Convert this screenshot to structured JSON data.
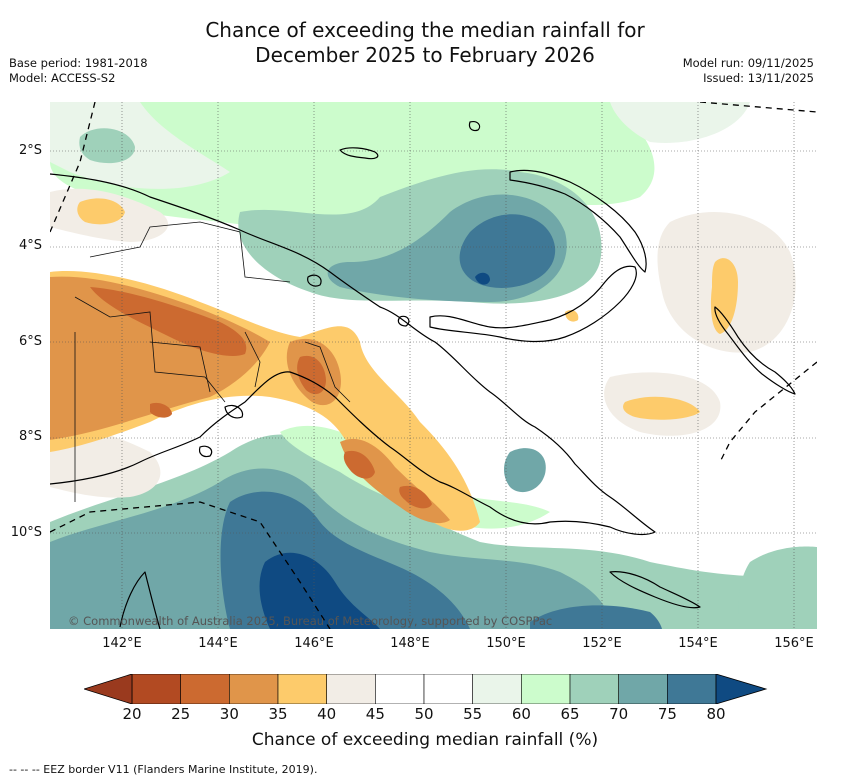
{
  "title_line1": "Chance of exceeding the median rainfall for",
  "title_line2": "December 2025 to February 2026",
  "base_period": "Base period: 1981-2018",
  "model": "Model: ACCESS-S2",
  "model_run": "Model run: 09/11/2025",
  "issued": "Issued: 13/11/2025",
  "credit": "© Commonwealth of Australia 2025, Bureau of Meteorology, supported by COSPPac",
  "footnote": "--  --  -- EEZ border V11 (Flanders Marine Institute, 2019).",
  "latitude_labels": [
    "2°S",
    "4°S",
    "6°S",
    "8°S",
    "10°S"
  ],
  "longitude_labels": [
    "142°E",
    "144°E",
    "146°E",
    "148°E",
    "150°E",
    "152°E",
    "154°E",
    "156°E"
  ],
  "colorbar": {
    "label": "Chance of exceeding median rainfall (%)",
    "ticks": [
      "20",
      "25",
      "30",
      "35",
      "40",
      "45",
      "50",
      "55",
      "60",
      "65",
      "70",
      "75",
      "80"
    ],
    "colors": [
      "#b24a22",
      "#cc6a30",
      "#e0954a",
      "#fdcb6b",
      "#f2ede6",
      "#ffffff",
      "#ffffff",
      "#eaf5ea",
      "#ccfccc",
      "#9fd1ba",
      "#70a7a8",
      "#3f7896"
    ],
    "under_color": "#9a3a1e",
    "over_color": "#0f4a82"
  },
  "palette": {
    "ocean_teal": "#9fd1ba",
    "teal_mid": "#70a7a8",
    "blue_deep": "#3f7896",
    "blue_darkest": "#0f4a82",
    "orange_light": "#fdcb6b",
    "orange_mid": "#e0954a",
    "orange_dark": "#cc6a30",
    "neutral": "#f2ede6"
  }
}
